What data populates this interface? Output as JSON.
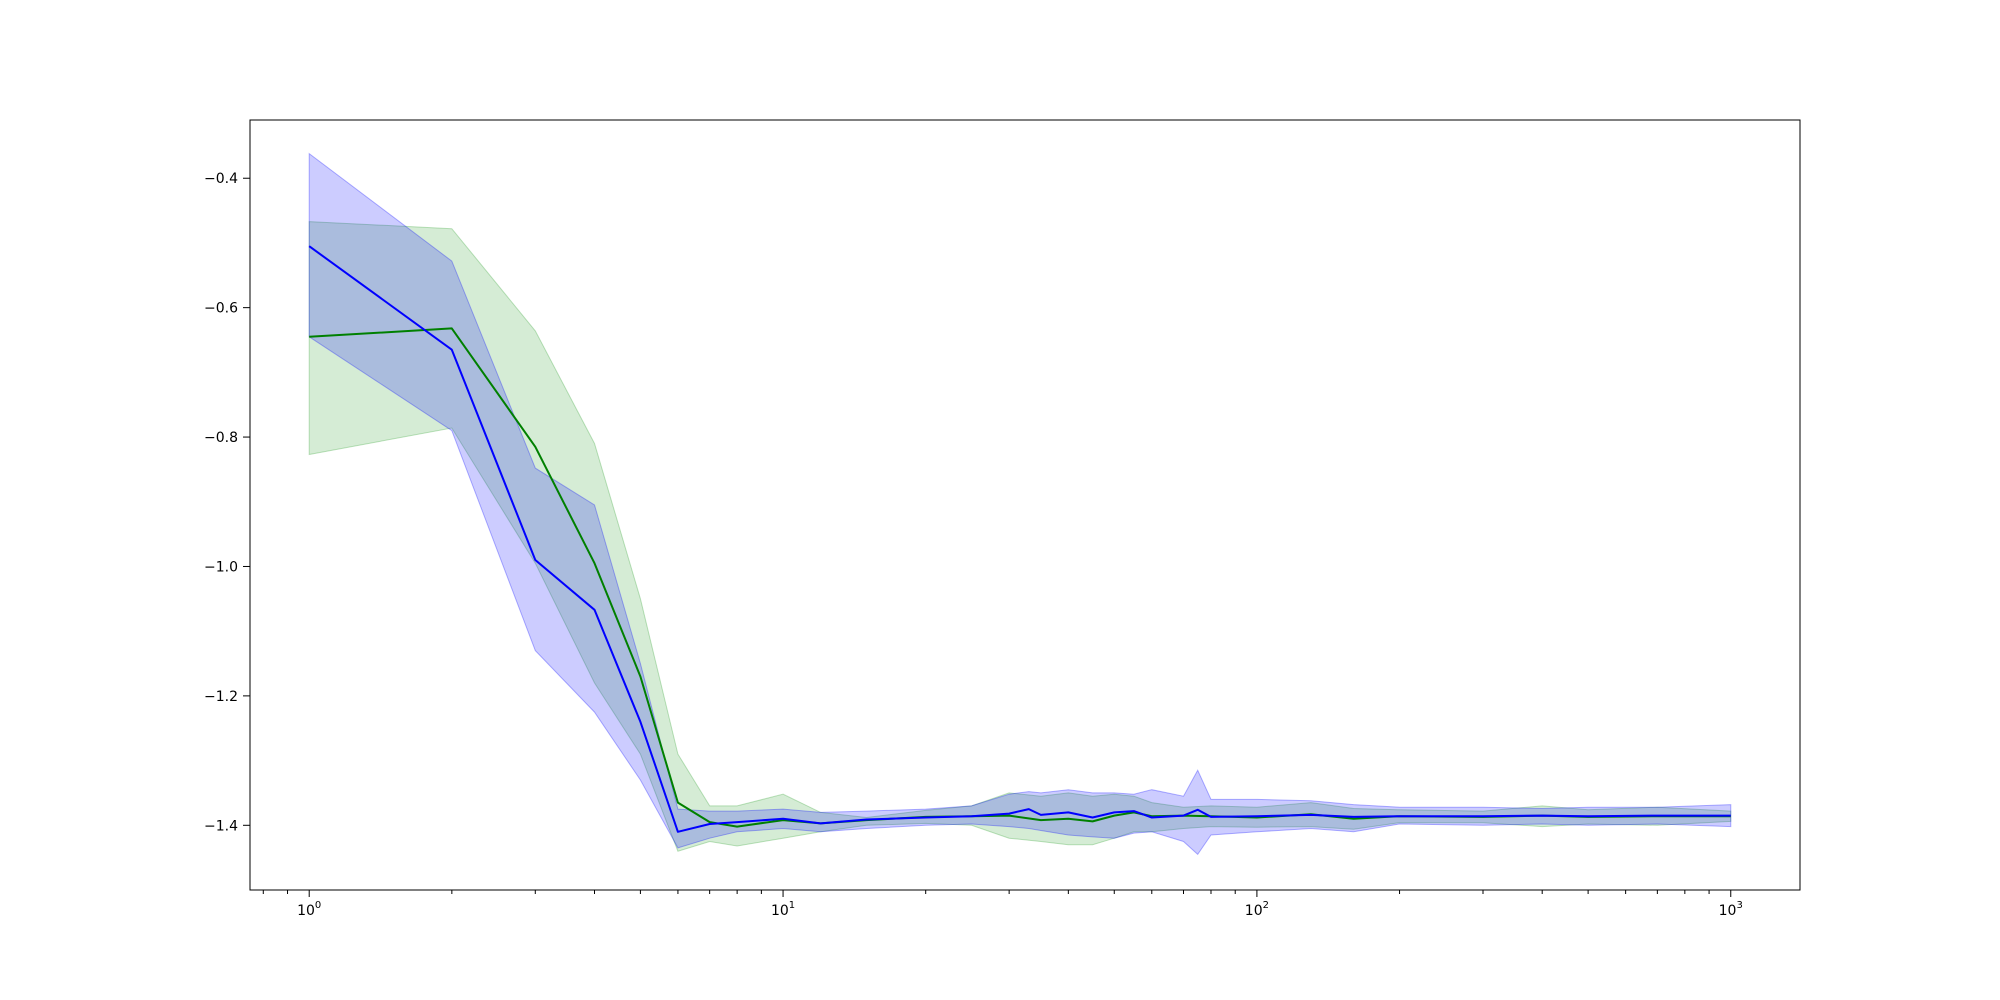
{
  "chart_data": {
    "type": "line",
    "title": "",
    "xlabel": "",
    "ylabel": "",
    "xscale": "log",
    "xlim": [
      0.75,
      1400
    ],
    "ylim": [
      -1.5,
      -0.31
    ],
    "grid": false,
    "legend": "none",
    "x_ticks": [
      {
        "value": 1,
        "base": "10",
        "exp": "0"
      },
      {
        "value": 10,
        "base": "10",
        "exp": "1"
      },
      {
        "value": 100,
        "base": "10",
        "exp": "2"
      },
      {
        "value": 1000,
        "base": "10",
        "exp": "3"
      }
    ],
    "y_ticks": [
      {
        "value": -0.4,
        "label": "−0.4"
      },
      {
        "value": -0.6,
        "label": "−0.6"
      },
      {
        "value": -0.8,
        "label": "−0.8"
      },
      {
        "value": -1.0,
        "label": "−1.0"
      },
      {
        "value": -1.2,
        "label": "−1.2"
      },
      {
        "value": -1.4,
        "label": "−1.4"
      }
    ],
    "series": [
      {
        "color": "#008000",
        "band_color": "#2ca02c",
        "x": [
          1,
          2,
          3,
          4,
          5,
          6,
          7,
          8,
          10,
          12,
          15,
          20,
          25,
          30,
          35,
          40,
          45,
          50,
          55,
          60,
          70,
          80,
          100,
          130,
          160,
          200,
          300,
          400,
          500,
          700,
          1000
        ],
        "y": [
          -0.645,
          -0.632,
          -0.815,
          -0.995,
          -1.17,
          -1.365,
          -1.395,
          -1.402,
          -1.392,
          -1.397,
          -1.392,
          -1.387,
          -1.386,
          -1.385,
          -1.392,
          -1.39,
          -1.394,
          -1.385,
          -1.38,
          -1.386,
          -1.385,
          -1.386,
          -1.388,
          -1.383,
          -1.39,
          -1.386,
          -1.387,
          -1.385,
          -1.387,
          -1.386,
          -1.386
        ],
        "upper": [
          -0.467,
          -0.478,
          -0.636,
          -0.81,
          -1.05,
          -1.29,
          -1.37,
          -1.37,
          -1.352,
          -1.38,
          -1.388,
          -1.377,
          -1.37,
          -1.35,
          -1.355,
          -1.35,
          -1.355,
          -1.352,
          -1.355,
          -1.365,
          -1.372,
          -1.37,
          -1.372,
          -1.365,
          -1.374,
          -1.376,
          -1.378,
          -1.37,
          -1.376,
          -1.372,
          -1.378
        ],
        "lower": [
          -0.827,
          -0.786,
          -0.995,
          -1.18,
          -1.29,
          -1.44,
          -1.425,
          -1.432,
          -1.42,
          -1.41,
          -1.4,
          -1.397,
          -1.4,
          -1.42,
          -1.425,
          -1.43,
          -1.43,
          -1.42,
          -1.41,
          -1.41,
          -1.405,
          -1.402,
          -1.403,
          -1.402,
          -1.406,
          -1.396,
          -1.396,
          -1.402,
          -1.398,
          -1.4,
          -1.394
        ]
      },
      {
        "color": "#0000ff",
        "band_color": "#0000ff",
        "x": [
          1,
          2,
          3,
          4,
          5,
          6,
          7,
          8,
          10,
          12,
          15,
          20,
          25,
          30,
          33,
          35,
          40,
          45,
          50,
          55,
          60,
          70,
          75,
          80,
          100,
          130,
          160,
          200,
          300,
          400,
          500,
          700,
          1000
        ],
        "y": [
          -0.505,
          -0.665,
          -0.99,
          -1.067,
          -1.24,
          -1.41,
          -1.398,
          -1.395,
          -1.39,
          -1.397,
          -1.391,
          -1.388,
          -1.386,
          -1.382,
          -1.375,
          -1.384,
          -1.38,
          -1.388,
          -1.38,
          -1.378,
          -1.388,
          -1.385,
          -1.376,
          -1.387,
          -1.386,
          -1.384,
          -1.387,
          -1.386,
          -1.386,
          -1.385,
          -1.386,
          -1.385,
          -1.385
        ],
        "upper": [
          -0.362,
          -0.528,
          -0.848,
          -0.905,
          -1.15,
          -1.375,
          -1.378,
          -1.378,
          -1.375,
          -1.38,
          -1.378,
          -1.375,
          -1.37,
          -1.352,
          -1.348,
          -1.35,
          -1.345,
          -1.35,
          -1.35,
          -1.352,
          -1.345,
          -1.355,
          -1.315,
          -1.36,
          -1.36,
          -1.362,
          -1.368,
          -1.372,
          -1.372,
          -1.374,
          -1.372,
          -1.372,
          -1.368
        ],
        "lower": [
          -0.645,
          -0.79,
          -1.13,
          -1.225,
          -1.33,
          -1.435,
          -1.42,
          -1.41,
          -1.405,
          -1.41,
          -1.405,
          -1.4,
          -1.398,
          -1.402,
          -1.405,
          -1.408,
          -1.415,
          -1.418,
          -1.42,
          -1.412,
          -1.41,
          -1.425,
          -1.445,
          -1.415,
          -1.41,
          -1.405,
          -1.41,
          -1.398,
          -1.4,
          -1.398,
          -1.4,
          -1.398,
          -1.402
        ]
      }
    ]
  }
}
